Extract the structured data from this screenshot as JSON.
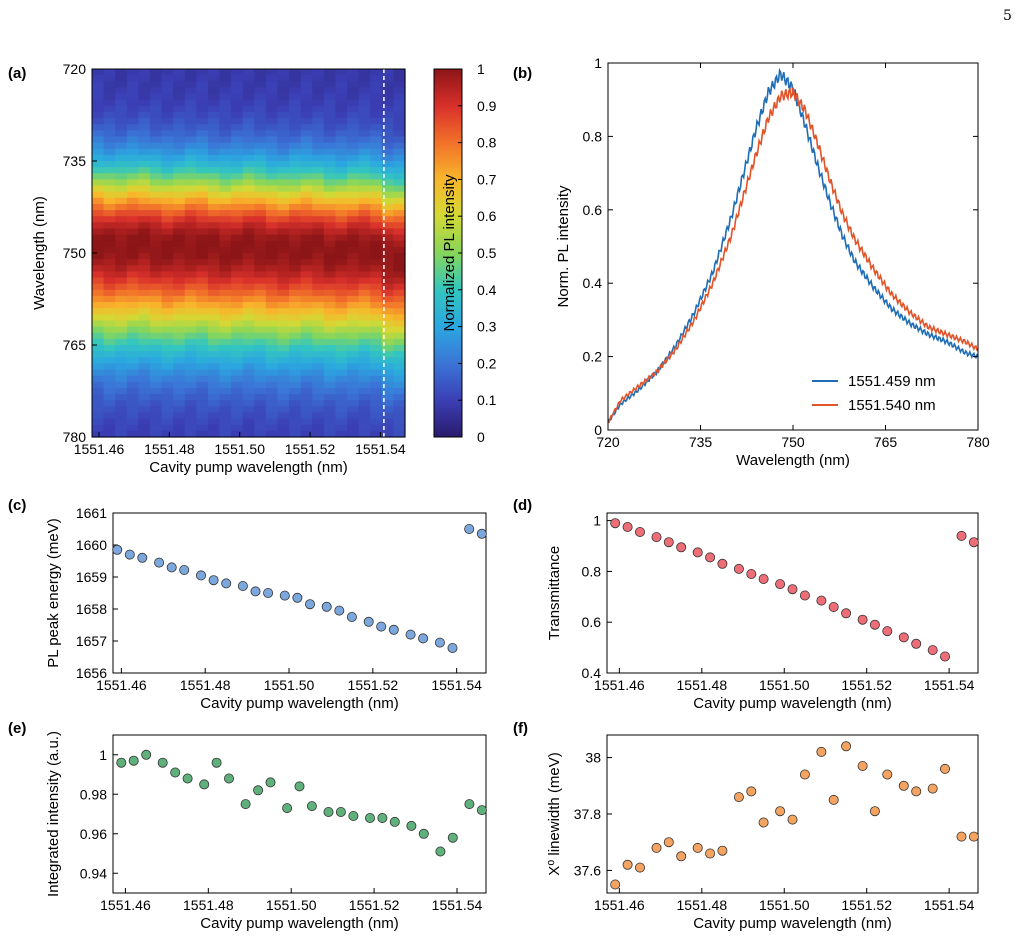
{
  "page_number": "5",
  "chart_data": [
    {
      "id": "a",
      "panel_label": "(a)",
      "type": "heatmap",
      "xlabel": "Cavity pump wavelength (nm)",
      "ylabel": "Wavelength (nm)",
      "xlim": [
        1551.458,
        1551.547
      ],
      "ylim": [
        720,
        780
      ],
      "y_inverted": true,
      "xticks": [
        1551.46,
        1551.48,
        1551.5,
        1551.52,
        1551.54
      ],
      "xtick_labels": [
        "1551.46",
        "1551.48",
        "1551.50",
        "1551.52",
        "1551.54"
      ],
      "yticks": [
        720,
        735,
        750,
        765,
        780
      ],
      "ytick_labels": [
        "720",
        "735",
        "750",
        "765",
        "780"
      ],
      "profile_peak_nm": 749,
      "profile_width_nm": 9,
      "colorbar": {
        "label": "Normalized PL intensity",
        "range": [
          0,
          1
        ],
        "ticks": [
          0,
          0.1,
          0.2,
          0.3,
          0.4,
          0.5,
          0.6,
          0.7,
          0.8,
          0.9,
          1
        ],
        "tick_labels": [
          "0",
          "0.1",
          "0.2",
          "0.3",
          "0.4",
          "0.5",
          "0.6",
          "0.7",
          "0.8",
          "0.9",
          "1"
        ],
        "colormap": "jet"
      },
      "marker_line": {
        "x": 1551.541,
        "style": "dashed",
        "color": "#ffffff"
      }
    },
    {
      "id": "b",
      "panel_label": "(b)",
      "type": "line",
      "xlabel": "Wavelength (nm)",
      "ylabel": "Norm. PL intensity",
      "xlim": [
        720,
        780
      ],
      "ylim": [
        0,
        1
      ],
      "xticks": [
        720,
        735,
        750,
        765,
        780
      ],
      "xtick_labels": [
        "720",
        "735",
        "750",
        "765",
        "780"
      ],
      "yticks": [
        0,
        0.2,
        0.4,
        0.6,
        0.8,
        1
      ],
      "ytick_labels": [
        "0",
        "0.2",
        "0.4",
        "0.6",
        "0.8",
        "1"
      ],
      "legend_position": "bottom-right",
      "series": [
        {
          "name": "1551.459 nm",
          "color": "#1f6db5",
          "x": [
            720,
            722,
            725,
            728,
            731,
            734,
            737,
            740,
            742,
            744,
            746,
            748,
            750,
            752,
            754,
            756,
            758,
            760,
            763,
            766,
            769,
            772,
            775,
            778,
            780
          ],
          "y": [
            0.02,
            0.07,
            0.11,
            0.16,
            0.23,
            0.32,
            0.43,
            0.58,
            0.7,
            0.82,
            0.92,
            0.97,
            0.93,
            0.83,
            0.72,
            0.62,
            0.53,
            0.46,
            0.39,
            0.33,
            0.29,
            0.26,
            0.24,
            0.21,
            0.2
          ]
        },
        {
          "name": "1551.540 nm",
          "color": "#e0542a",
          "x": [
            720,
            722,
            725,
            728,
            731,
            734,
            737,
            740,
            742,
            744,
            746,
            748,
            750,
            752,
            754,
            756,
            758,
            760,
            763,
            766,
            769,
            772,
            775,
            778,
            780
          ],
          "y": [
            0.02,
            0.08,
            0.12,
            0.16,
            0.22,
            0.3,
            0.4,
            0.53,
            0.64,
            0.75,
            0.85,
            0.91,
            0.92,
            0.87,
            0.78,
            0.68,
            0.59,
            0.52,
            0.44,
            0.37,
            0.32,
            0.28,
            0.26,
            0.24,
            0.22
          ]
        }
      ]
    },
    {
      "id": "c",
      "panel_label": "(c)",
      "type": "scatter",
      "xlabel": "Cavity pump wavelength (nm)",
      "ylabel": "PL peak energy (meV)",
      "xlim": [
        1551.458,
        1551.547
      ],
      "ylim": [
        1656,
        1661
      ],
      "xticks": [
        1551.46,
        1551.48,
        1551.5,
        1551.52,
        1551.54
      ],
      "xtick_labels": [
        "1551.46",
        "1551.48",
        "1551.50",
        "1551.52",
        "1551.54"
      ],
      "yticks": [
        1656,
        1657,
        1658,
        1659,
        1660,
        1661
      ],
      "ytick_labels": [
        "1656",
        "1657",
        "1658",
        "1659",
        "1660",
        "1661"
      ],
      "marker_color": "#7ba7dc",
      "x": [
        1551.459,
        1551.462,
        1551.465,
        1551.469,
        1551.472,
        1551.475,
        1551.479,
        1551.482,
        1551.485,
        1551.489,
        1551.492,
        1551.495,
        1551.499,
        1551.502,
        1551.505,
        1551.509,
        1551.512,
        1551.515,
        1551.519,
        1551.522,
        1551.525,
        1551.529,
        1551.532,
        1551.536,
        1551.539,
        1551.543,
        1551.546
      ],
      "y": [
        1659.85,
        1659.7,
        1659.6,
        1659.45,
        1659.3,
        1659.22,
        1659.05,
        1658.9,
        1658.8,
        1658.72,
        1658.55,
        1658.5,
        1658.42,
        1658.35,
        1658.15,
        1658.07,
        1657.95,
        1657.75,
        1657.6,
        1657.45,
        1657.35,
        1657.2,
        1657.08,
        1656.95,
        1656.78,
        1660.5,
        1660.35
      ]
    },
    {
      "id": "d",
      "panel_label": "(d)",
      "type": "scatter",
      "xlabel": "Cavity pump wavelength (nm)",
      "ylabel": "Transmittance",
      "xlim": [
        1551.457,
        1551.547
      ],
      "ylim": [
        0.4,
        1.03
      ],
      "xticks": [
        1551.46,
        1551.48,
        1551.5,
        1551.52,
        1551.54
      ],
      "xtick_labels": [
        "1551.46",
        "1551.48",
        "1551.50",
        "1551.52",
        "1551.54"
      ],
      "yticks": [
        0.4,
        0.6,
        0.8,
        1
      ],
      "ytick_labels": [
        "0.4",
        "0.6",
        "0.8",
        "1"
      ],
      "marker_color": "#ee6e78",
      "x": [
        1551.459,
        1551.462,
        1551.465,
        1551.469,
        1551.472,
        1551.475,
        1551.479,
        1551.482,
        1551.485,
        1551.489,
        1551.492,
        1551.495,
        1551.499,
        1551.502,
        1551.505,
        1551.509,
        1551.512,
        1551.515,
        1551.519,
        1551.522,
        1551.525,
        1551.529,
        1551.532,
        1551.536,
        1551.539,
        1551.543,
        1551.546
      ],
      "y": [
        0.99,
        0.975,
        0.955,
        0.935,
        0.915,
        0.895,
        0.875,
        0.855,
        0.83,
        0.81,
        0.79,
        0.77,
        0.75,
        0.73,
        0.705,
        0.685,
        0.66,
        0.635,
        0.61,
        0.59,
        0.565,
        0.54,
        0.515,
        0.49,
        0.465,
        0.94,
        0.915
      ]
    },
    {
      "id": "e",
      "panel_label": "(e)",
      "type": "scatter",
      "xlabel": "Cavity pump wavelength (nm)",
      "ylabel": "Integrated intensity (a.u.)",
      "xlim": [
        1551.457,
        1551.547
      ],
      "ylim": [
        0.93,
        1.01
      ],
      "xticks": [
        1551.46,
        1551.48,
        1551.5,
        1551.52,
        1551.54
      ],
      "xtick_labels": [
        "1551.46",
        "1551.48",
        "1551.50",
        "1551.52",
        "1551.54"
      ],
      "yticks": [
        0.94,
        0.96,
        0.98,
        1
      ],
      "ytick_labels": [
        "0.94",
        "0.96",
        "0.98",
        "1"
      ],
      "marker_color": "#5fb07a",
      "x": [
        1551.459,
        1551.462,
        1551.465,
        1551.469,
        1551.472,
        1551.475,
        1551.479,
        1551.482,
        1551.485,
        1551.489,
        1551.492,
        1551.495,
        1551.499,
        1551.502,
        1551.505,
        1551.509,
        1551.512,
        1551.515,
        1551.519,
        1551.522,
        1551.525,
        1551.529,
        1551.532,
        1551.536,
        1551.539,
        1551.543,
        1551.546
      ],
      "y": [
        0.996,
        0.997,
        1.0,
        0.996,
        0.991,
        0.988,
        0.985,
        0.996,
        0.988,
        0.975,
        0.982,
        0.986,
        0.973,
        0.984,
        0.974,
        0.971,
        0.971,
        0.969,
        0.968,
        0.968,
        0.966,
        0.964,
        0.96,
        0.951,
        0.958,
        0.975,
        0.972
      ]
    },
    {
      "id": "f",
      "panel_label": "(f)",
      "type": "scatter",
      "xlabel": "Cavity pump wavelength (nm)",
      "ylabel": "X⁰ linewidth (meV)",
      "xlim": [
        1551.457,
        1551.547
      ],
      "ylim": [
        37.52,
        38.08
      ],
      "xticks": [
        1551.46,
        1551.48,
        1551.5,
        1551.52,
        1551.54
      ],
      "xtick_labels": [
        "1551.46",
        "1551.48",
        "1551.50",
        "1551.52",
        "1551.54"
      ],
      "yticks": [
        37.6,
        37.8,
        38
      ],
      "ytick_labels": [
        "37.6",
        "37.8",
        "38"
      ],
      "marker_color": "#f4a460",
      "x": [
        1551.459,
        1551.462,
        1551.465,
        1551.469,
        1551.472,
        1551.475,
        1551.479,
        1551.482,
        1551.485,
        1551.489,
        1551.492,
        1551.495,
        1551.499,
        1551.502,
        1551.505,
        1551.509,
        1551.512,
        1551.515,
        1551.519,
        1551.522,
        1551.525,
        1551.529,
        1551.532,
        1551.536,
        1551.539,
        1551.543,
        1551.546
      ],
      "y": [
        37.55,
        37.62,
        37.61,
        37.68,
        37.7,
        37.65,
        37.68,
        37.66,
        37.67,
        37.86,
        37.88,
        37.77,
        37.81,
        37.78,
        37.94,
        38.02,
        37.85,
        38.04,
        37.97,
        37.81,
        37.94,
        37.9,
        37.88,
        37.89,
        37.96,
        37.72,
        37.72
      ]
    }
  ]
}
